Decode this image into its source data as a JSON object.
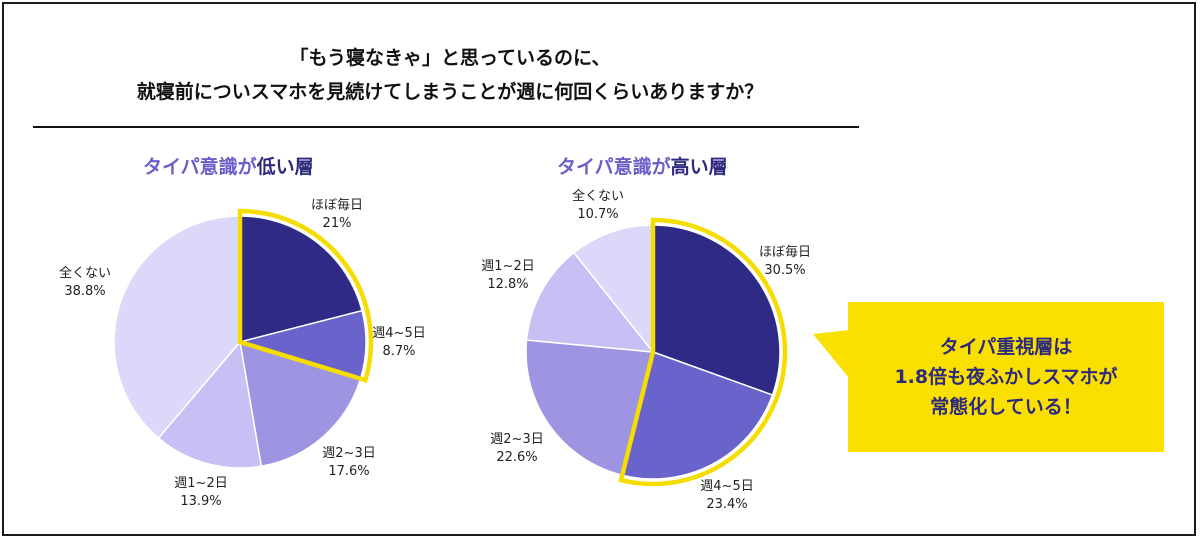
{
  "title_line1": "「もう寝なきゃ」と思っているのに、",
  "title_line2": "就寝前についスマホを見続けてしまうことが週に何回くらいありますか？",
  "chart_data": [
    {
      "type": "pie",
      "title_prefix": "タイパ意識が",
      "title_emph": "低い層",
      "categories": [
        "ほぼ毎日",
        "週4~5日",
        "週2~3日",
        "週1~2日",
        "全くない"
      ],
      "values": [
        21,
        8.7,
        17.6,
        13.9,
        38.8
      ],
      "value_labels": [
        "21%",
        "8.7%",
        "17.6%",
        "13.9%",
        "38.8%"
      ],
      "colors": [
        "#2e2a85",
        "#6b63cc",
        "#9d95e2",
        "#c6c0f4",
        "#dcd8fa"
      ],
      "highlighted": [
        "ほぼ毎日",
        "週4~5日"
      ]
    },
    {
      "type": "pie",
      "title_prefix": "タイパ意識が",
      "title_emph": "高い層",
      "categories": [
        "ほぼ毎日",
        "週4~5日",
        "週2~3日",
        "週1~2日",
        "全くない"
      ],
      "values": [
        30.5,
        23.4,
        22.6,
        12.8,
        10.7
      ],
      "value_labels": [
        "30.5%",
        "23.4%",
        "22.6%",
        "12.8%",
        "10.7%"
      ],
      "colors": [
        "#2e2a85",
        "#6b63cc",
        "#9d95e2",
        "#c6c0f4",
        "#dcd8fa"
      ],
      "highlighted": [
        "ほぼ毎日",
        "週4~5日"
      ]
    }
  ],
  "highlight_color": "#f5dd00",
  "callout": {
    "line1": "タイパ重視層は",
    "line2": "1.8倍も夜ふかしスマホが",
    "line3": "常態化している！"
  }
}
